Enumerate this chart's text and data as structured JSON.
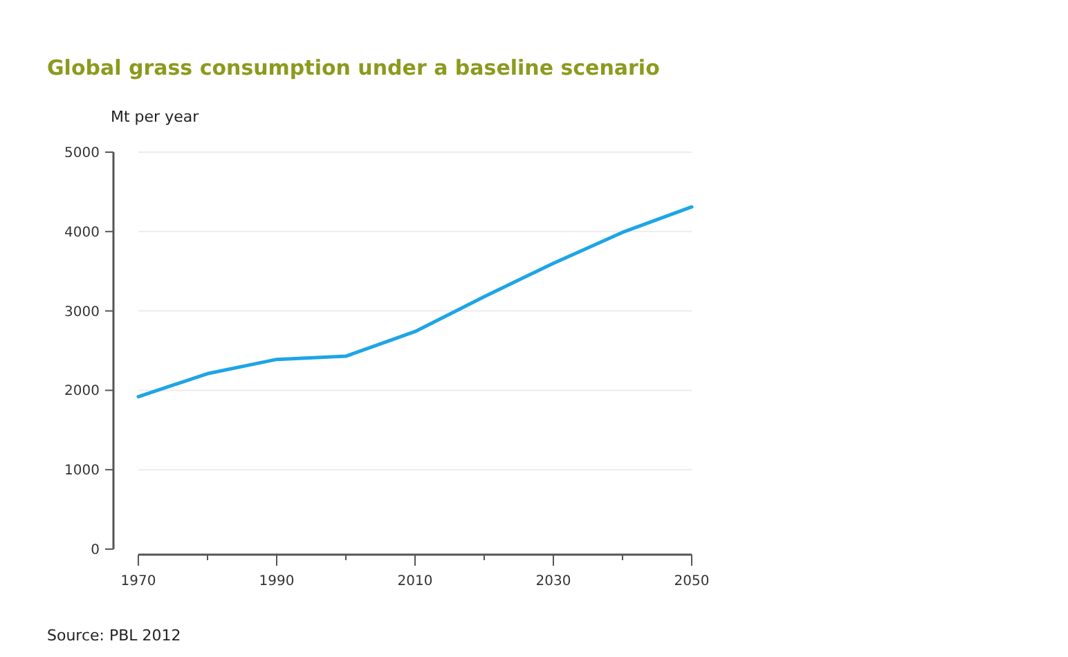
{
  "chart_data": {
    "type": "line",
    "title": "Global grass consumption under a baseline scenario",
    "ylabel": "Mt per year",
    "x": [
      1970,
      1980,
      1990,
      2000,
      2010,
      2020,
      2030,
      2040,
      2050
    ],
    "series": [
      {
        "color": "#1ea5e6",
        "values": [
          1920,
          2210,
          2390,
          2430,
          2740,
          3180,
          3600,
          3990,
          4310
        ]
      }
    ],
    "xlim": [
      1970,
      2050
    ],
    "xticks": [
      1970,
      {
        "value": 1980,
        "label": null
      },
      1990,
      {
        "value": 2000,
        "label": null
      },
      2010,
      {
        "value": 2020,
        "label": null
      },
      2030,
      {
        "value": 2040,
        "label": null
      },
      2050
    ],
    "ylim": [
      0,
      5000
    ],
    "yticks": [
      0,
      1000,
      2000,
      3000,
      4000,
      5000
    ],
    "grid": "y",
    "marker": "none",
    "line_style": "solid",
    "annotations": [
      "Source: PBL 2012"
    ]
  }
}
